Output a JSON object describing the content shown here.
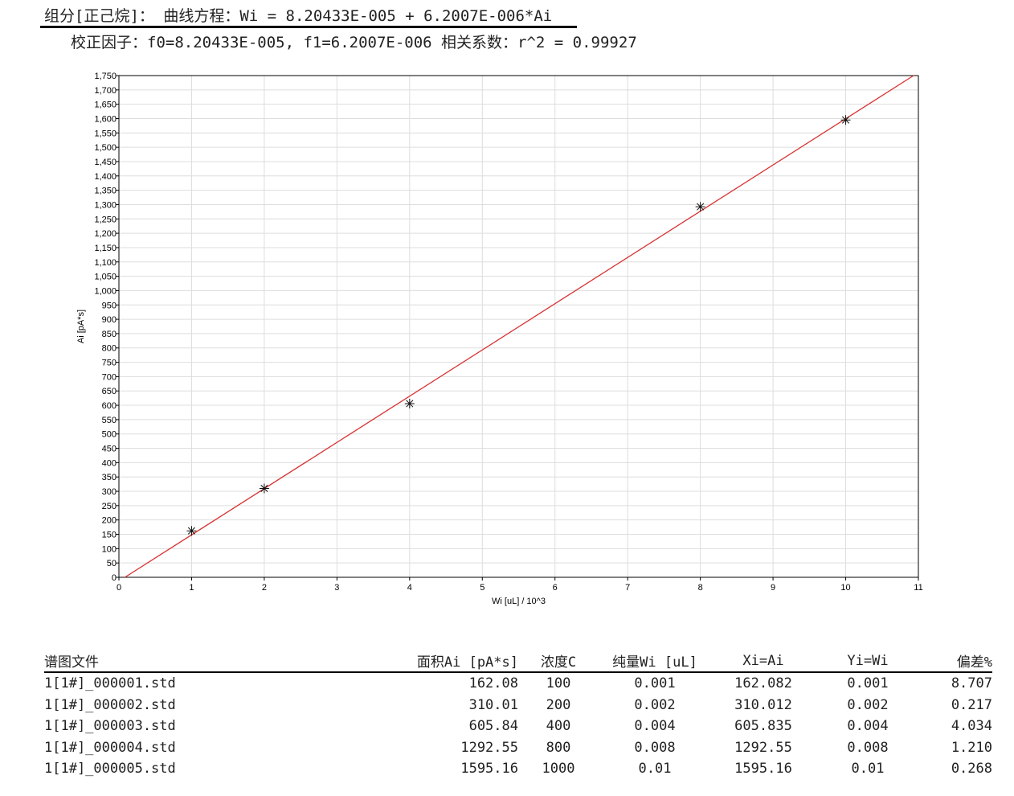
{
  "header": {
    "line1": "组分[正己烷]： 曲线方程：Wi = 8.20433E-005 + 6.2007E-006*Ai",
    "line2": "校正因子：f0=8.20433E-005, f1=6.2007E-006  相关系数：r^2 = 0.99927"
  },
  "chart_data": {
    "type": "scatter",
    "title": "",
    "xlabel": "Wi [uL] / 10^3",
    "ylabel": "Ai [pA*s]",
    "xlim": [
      0,
      11
    ],
    "ylim": [
      0,
      1750
    ],
    "xticks": [
      0,
      1,
      2,
      3,
      4,
      5,
      6,
      7,
      8,
      9,
      10,
      11
    ],
    "ytick_step": 50,
    "grid": true,
    "marker": "asterisk",
    "points": {
      "x": [
        1,
        2,
        4,
        8,
        10
      ],
      "y": [
        162.08,
        310.01,
        605.84,
        1292.55,
        1595.16
      ]
    },
    "fit_line": {
      "intercept": 8.20433e-05,
      "slope": 6.2007e-06,
      "color": "#d93030"
    }
  },
  "table": {
    "headers": [
      "谱图文件",
      "面积Ai [pA*s]",
      "浓度C",
      "纯量Wi [uL]",
      "Xi=Ai",
      "Yi=Wi",
      "偏差%"
    ],
    "rows": [
      [
        "1[1#]_000001.std",
        "162.08",
        "100",
        "0.001",
        "162.082",
        "0.001",
        "8.707"
      ],
      [
        "1[1#]_000002.std",
        "310.01",
        "200",
        "0.002",
        "310.012",
        "0.002",
        "0.217"
      ],
      [
        "1[1#]_000003.std",
        "605.84",
        "400",
        "0.004",
        "605.835",
        "0.004",
        "4.034"
      ],
      [
        "1[1#]_000004.std",
        "1292.55",
        "800",
        "0.008",
        "1292.55",
        "0.008",
        "1.210"
      ],
      [
        "1[1#]_000005.std",
        "1595.16",
        "1000",
        "0.01",
        "1595.16",
        "0.01",
        "0.268"
      ]
    ]
  }
}
